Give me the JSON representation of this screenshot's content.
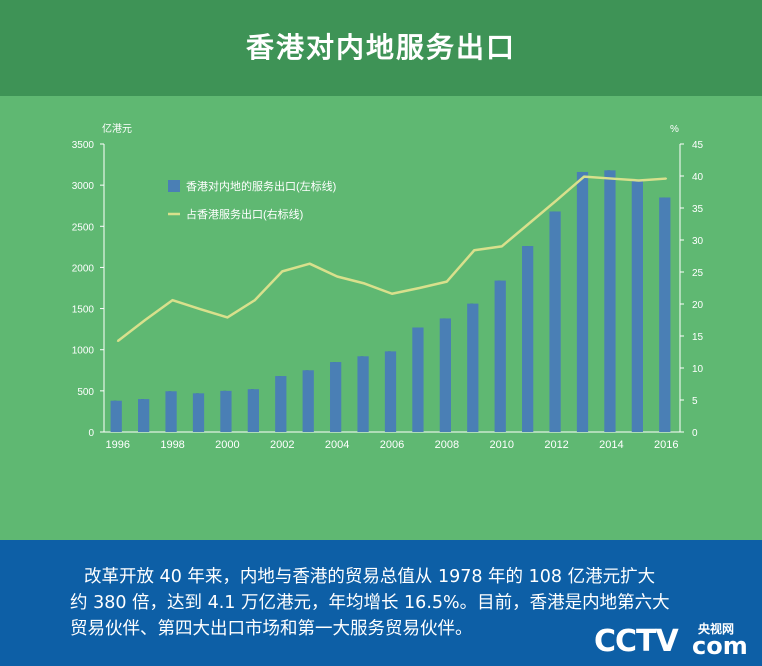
{
  "header": {
    "title": "香港对内地服务出口"
  },
  "chart_data": {
    "type": "bar",
    "title": "香港对内地服务出口",
    "ylabel_left": "亿港元",
    "ylabel_right": "%",
    "ylim_left": [
      0,
      3500
    ],
    "ylim_right": [
      0,
      45
    ],
    "yticks_left": [
      "0",
      "500",
      "1000",
      "1500",
      "2000",
      "2500",
      "3000",
      "3500"
    ],
    "yticks_right": [
      "0",
      "5",
      "10",
      "15",
      "20",
      "25",
      "30",
      "35",
      "40",
      "45"
    ],
    "categories": [
      "1996",
      "1997",
      "1998",
      "1999",
      "2000",
      "2001",
      "2002",
      "2003",
      "2004",
      "2005",
      "2006",
      "2007",
      "2008",
      "2009",
      "2010",
      "2011",
      "2012",
      "2013",
      "2014",
      "2015",
      "2016"
    ],
    "xtick_labels": [
      "1996",
      "1998",
      "2000",
      "2002",
      "2004",
      "2006",
      "2008",
      "2010",
      "2012",
      "2014",
      "2016"
    ],
    "series": [
      {
        "name": "香港对内地的服务出口(左标线)",
        "kind": "bar",
        "axis": "left",
        "color": "#4a7fb5",
        "values": [
          380,
          400,
          495,
          470,
          500,
          520,
          680,
          750,
          850,
          920,
          980,
          1270,
          1380,
          1560,
          1840,
          2260,
          2680,
          3160,
          3180,
          3070,
          2850
        ]
      },
      {
        "name": "占香港服务出口(右标线)",
        "kind": "line",
        "axis": "right",
        "color": "#d8e08c",
        "values": [
          14.2,
          17.5,
          20.6,
          19.2,
          17.9,
          20.6,
          25.1,
          26.3,
          24.3,
          23.2,
          21.6,
          22.5,
          23.5,
          28.4,
          29.0,
          32.6,
          36.2,
          39.9,
          39.6,
          39.3,
          39.6
        ]
      }
    ]
  },
  "footer": {
    "paragraph_line1": "改革开放 40 年来，内地与香港的贸易总值从 1978 年的 108 亿港元扩大",
    "paragraph_line2": "约 380 倍，达到 4.1 万亿港元，年均增长 16.5%。目前，香港是内地第六大",
    "paragraph_line3": "贸易伙伴、第四大出口市场和第一大服务贸易伙伴。"
  },
  "logo": {
    "main": "CCTV",
    "site": "央视网",
    "com": "com"
  }
}
